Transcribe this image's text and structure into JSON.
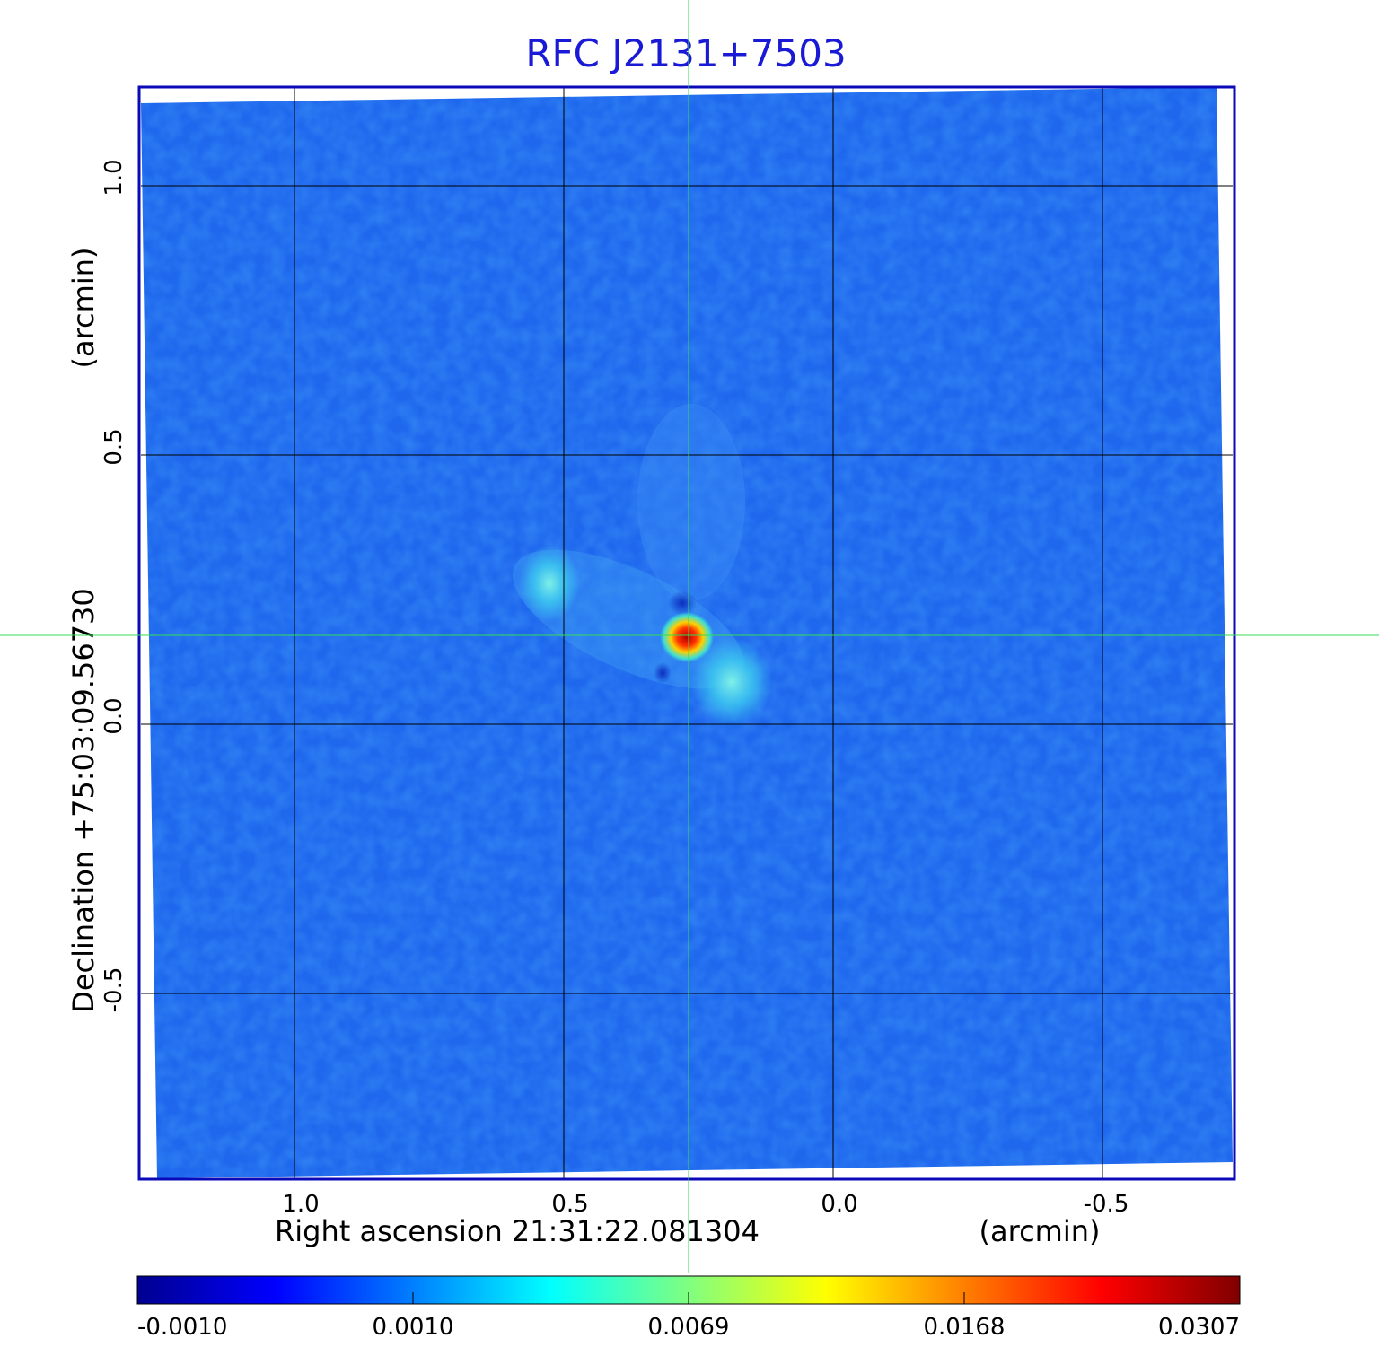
{
  "title": "RFC J2131+7503",
  "x_axis": {
    "label": "Right ascension  21:31:22.081304",
    "unit": "(arcmin)",
    "ticks": [
      "1.0",
      "0.5",
      "0.0",
      "-0.5"
    ]
  },
  "y_axis": {
    "label": "Declination  +75:03:09.56730",
    "unit": "(arcmin)",
    "ticks": [
      "1.0",
      "0.5",
      "0.0",
      "-0.5"
    ]
  },
  "colorbar": {
    "ticks": [
      "-0.0010",
      "0.0010",
      "0.0069",
      "0.0168",
      "0.0307"
    ],
    "min": -0.001,
    "max": 0.0307
  },
  "colors": {
    "title": "#1a1ad6",
    "frame": "#0a0ab8",
    "background_map": "#1e6ef0",
    "crosshair": "#33dd55"
  }
}
